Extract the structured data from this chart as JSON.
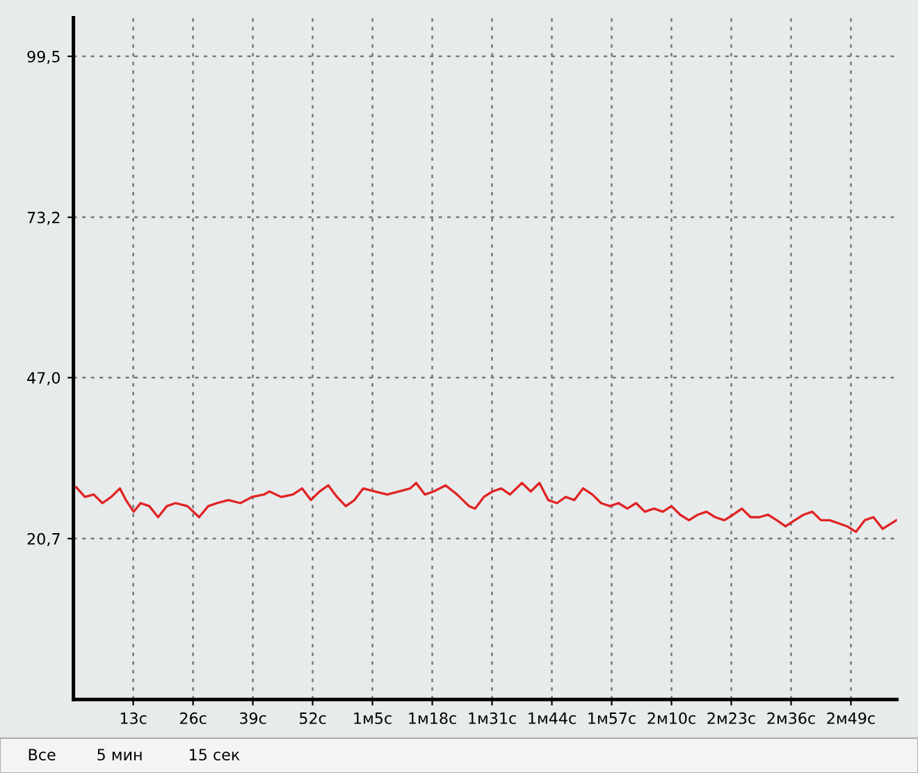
{
  "chart_data": {
    "type": "line",
    "x": [
      0.6,
      2.5,
      4.4,
      6.3,
      8.2,
      10.1,
      11.4,
      13.1,
      14.6,
      16.5,
      18.4,
      20.3,
      22.2,
      24.8,
      27.3,
      29.3,
      31.2,
      33.7,
      36.3,
      38.8,
      41.4,
      42.6,
      45.2,
      47.7,
      49.7,
      51.6,
      53.5,
      55.4,
      57.3,
      59.2,
      61.1,
      63.0,
      65.6,
      68.2,
      70.7,
      73.2,
      74.5,
      76.4,
      78.3,
      80.9,
      83.4,
      86.0,
      87.3,
      89.2,
      91.1,
      93.0,
      94.9,
      97.5,
      99.4,
      101.3,
      103.2,
      105.1,
      107.0,
      108.9,
      110.8,
      112.8,
      114.7,
      116.6,
      118.5,
      120.4,
      122.3,
      124.2,
      126.2,
      128.1,
      130.0,
      131.9,
      133.8,
      135.7,
      137.6,
      139.5,
      141.5,
      143.4,
      145.3,
      147.2,
      149.1,
      151.0,
      152.9,
      154.8,
      156.8,
      158.7,
      160.6,
      162.5,
      164.4,
      166.3,
      168.2,
      170.1,
      172.0,
      173.9,
      175.9,
      177.8,
      178.9
    ],
    "series": [
      {
        "color": "#e02424",
        "values": [
          29.1,
          27.5,
          27.9,
          26.5,
          27.5,
          28.9,
          27.0,
          25.1,
          26.5,
          26.0,
          24.2,
          26.0,
          26.5,
          26.0,
          24.2,
          26.0,
          26.5,
          27.0,
          26.5,
          27.5,
          27.9,
          28.4,
          27.5,
          27.9,
          28.9,
          27.0,
          28.4,
          29.4,
          27.5,
          26.0,
          27.0,
          28.9,
          28.4,
          27.9,
          28.4,
          28.9,
          29.8,
          27.9,
          28.4,
          29.4,
          27.9,
          26.0,
          25.6,
          27.5,
          28.4,
          28.9,
          27.9,
          29.8,
          28.4,
          29.8,
          27.0,
          26.5,
          27.5,
          27.0,
          28.9,
          27.9,
          26.5,
          26.0,
          26.5,
          25.6,
          26.5,
          25.1,
          25.6,
          25.1,
          26.0,
          24.6,
          23.7,
          24.6,
          25.1,
          24.2,
          23.7,
          24.6,
          25.6,
          24.2,
          24.2,
          24.6,
          23.7,
          22.7,
          23.7,
          24.6,
          25.1,
          23.7,
          23.7,
          23.2,
          22.7,
          21.8,
          23.7,
          24.2,
          22.3,
          23.2,
          23.7
        ]
      }
    ],
    "xlim": [
      0,
      179
    ],
    "xticks": [
      {
        "value": 13,
        "label": "13с"
      },
      {
        "value": 26,
        "label": "26с"
      },
      {
        "value": 39,
        "label": "39с"
      },
      {
        "value": 52,
        "label": "52с"
      },
      {
        "value": 65,
        "label": "1м5с"
      },
      {
        "value": 78,
        "label": "1м18с"
      },
      {
        "value": 91,
        "label": "1м31с"
      },
      {
        "value": 104,
        "label": "1м44с"
      },
      {
        "value": 117,
        "label": "1м57с"
      },
      {
        "value": 130,
        "label": "2м10с"
      },
      {
        "value": 143,
        "label": "2м23с"
      },
      {
        "value": 156,
        "label": "2м36с"
      },
      {
        "value": 169,
        "label": "2м49с"
      }
    ],
    "ylim": [
      -5.6,
      105.8
    ],
    "yticks": [
      {
        "value": 20.7,
        "label": "20,7"
      },
      {
        "value": 47.0,
        "label": "47,0"
      },
      {
        "value": 73.2,
        "label": "73,2"
      },
      {
        "value": 99.5,
        "label": "99,5"
      }
    ],
    "grid": true,
    "line_style": "solid",
    "marker": "none",
    "annotations": [
      "Все",
      "5 мин",
      "15 сек"
    ]
  }
}
